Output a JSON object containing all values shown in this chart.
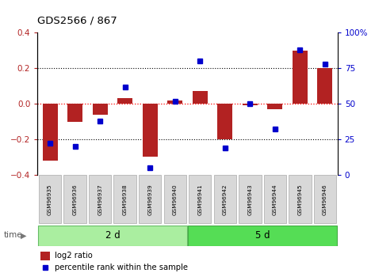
{
  "title": "GDS2566 / 867",
  "samples": [
    "GSM96935",
    "GSM96936",
    "GSM96937",
    "GSM96938",
    "GSM96939",
    "GSM96940",
    "GSM96941",
    "GSM96942",
    "GSM96943",
    "GSM96944",
    "GSM96945",
    "GSM96946"
  ],
  "log2_ratio": [
    -0.32,
    -0.1,
    -0.06,
    0.03,
    -0.3,
    0.02,
    0.07,
    -0.2,
    -0.01,
    -0.03,
    0.3,
    0.2
  ],
  "pct_rank": [
    22,
    20,
    38,
    62,
    5,
    52,
    80,
    19,
    50,
    32,
    88,
    78
  ],
  "group1_label": "2 d",
  "group2_label": "5 d",
  "group1_count": 6,
  "group2_count": 6,
  "bar_color": "#b22222",
  "dot_color": "#0000cc",
  "group1_color": "#aaeea0",
  "group2_color": "#55dd55",
  "legend1": "log2 ratio",
  "legend2": "percentile rank within the sample",
  "ylim_left": [
    -0.4,
    0.4
  ],
  "ylim_right": [
    0,
    100
  ],
  "yticks_left": [
    -0.4,
    -0.2,
    0.0,
    0.2,
    0.4
  ],
  "yticks_right": [
    0,
    25,
    50,
    75,
    100
  ]
}
